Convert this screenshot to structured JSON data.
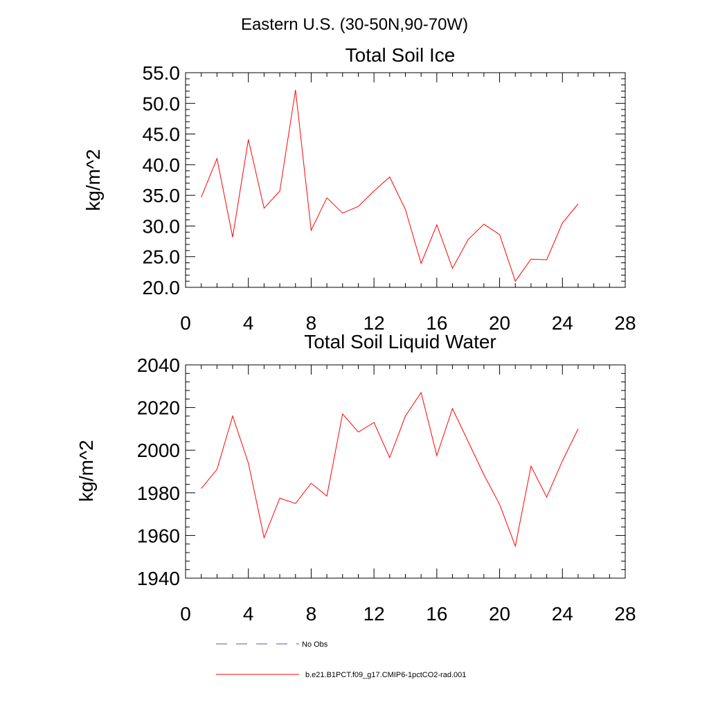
{
  "page_title": "Eastern U.S. (30-50N,90-70W)",
  "colors": {
    "series": "#ff0000",
    "obs": "#5a5a9a",
    "axis": "#000000"
  },
  "chart_data": [
    {
      "type": "line",
      "title": "Total Soil Ice",
      "xlabel": "",
      "ylabel": "kg/m^2",
      "xlim": [
        0,
        28
      ],
      "ylim": [
        20,
        55
      ],
      "xticks": [
        0,
        4,
        8,
        12,
        16,
        20,
        24,
        28
      ],
      "yticks": [
        20,
        25,
        30,
        35,
        40,
        45,
        50,
        55
      ],
      "ytick_labels": [
        "20.0",
        "25.0",
        "30.0",
        "35.0",
        "40.0",
        "45.0",
        "50.0",
        "55.0"
      ],
      "series": [
        {
          "name": "b.e21.B1PCT.f09_g17.CMIP6-1pctCO2-rad.001",
          "x": [
            1,
            2,
            3,
            4,
            5,
            6,
            7,
            8,
            9,
            10,
            11,
            12,
            13,
            14,
            15,
            16,
            17,
            18,
            19,
            20,
            21,
            22,
            23,
            24,
            25
          ],
          "values": [
            34.7,
            41.0,
            28.2,
            44.1,
            32.9,
            35.7,
            52.2,
            29.3,
            34.6,
            32.1,
            33.2,
            35.7,
            38.0,
            32.7,
            23.9,
            30.2,
            23.1,
            27.8,
            30.3,
            28.6,
            21.0,
            24.6,
            24.5,
            30.5,
            33.6
          ]
        }
      ]
    },
    {
      "type": "line",
      "title": "Total Soil Liquid Water",
      "xlabel": "",
      "ylabel": "kg/m^2",
      "xlim": [
        0,
        28
      ],
      "ylim": [
        1940,
        2040
      ],
      "xticks": [
        0,
        4,
        8,
        12,
        16,
        20,
        24,
        28
      ],
      "yticks": [
        1940,
        1960,
        1980,
        2000,
        2020,
        2040
      ],
      "ytick_labels": [
        "1940",
        "1960",
        "1980",
        "2000",
        "2020",
        "2040"
      ],
      "series": [
        {
          "name": "b.e21.B1PCT.f09_g17.CMIP6-1pctCO2-rad.001",
          "x": [
            1,
            2,
            3,
            4,
            5,
            6,
            7,
            8,
            9,
            10,
            11,
            12,
            13,
            14,
            15,
            16,
            17,
            18,
            19,
            20,
            21,
            22,
            23,
            24,
            25
          ],
          "values": [
            1982,
            1991,
            2016,
            1994,
            1959,
            1977.5,
            1975,
            1984.5,
            1978.5,
            2017,
            2008.5,
            2013,
            1996.5,
            2016,
            2027,
            1997.5,
            2019.5,
            2004,
            1988.5,
            1974.5,
            1955,
            1992.5,
            1978,
            1995,
            2010
          ]
        }
      ]
    }
  ],
  "legend": [
    {
      "label": "No Obs",
      "style": "dashed"
    },
    {
      "label": "b.e21.B1PCT.f09_g17.CMIP6-1pctCO2-rad.001",
      "style": "solid"
    }
  ]
}
